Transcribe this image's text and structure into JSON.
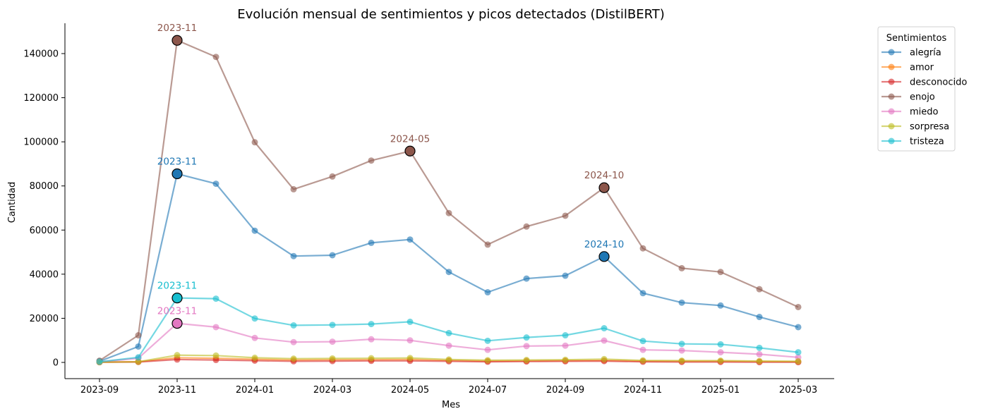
{
  "chart_data": {
    "type": "line",
    "title": "Evolución mensual de sentimientos y picos detectados (DistilBERT)",
    "xlabel": "Mes",
    "ylabel": "Cantidad",
    "ylim": [
      -7500,
      153000
    ],
    "yticks": [
      0,
      20000,
      40000,
      60000,
      80000,
      100000,
      120000,
      140000
    ],
    "x": [
      "2023-09",
      "2023-10",
      "2023-11",
      "2023-12",
      "2024-01",
      "2024-02",
      "2024-03",
      "2024-04",
      "2024-05",
      "2024-06",
      "2024-07",
      "2024-08",
      "2024-09",
      "2024-10",
      "2024-11",
      "2024-12",
      "2025-01",
      "2025-02",
      "2025-03"
    ],
    "xtick_labels": [
      "2023-09",
      "2023-11",
      "2024-01",
      "2024-03",
      "2024-05",
      "2024-07",
      "2024-09",
      "2024-11",
      "2025-01",
      "2025-03"
    ],
    "legend_title": "Sentimientos",
    "legend_position": "upper-right-outside",
    "grid": false,
    "series": [
      {
        "name": "alegría",
        "color": "#1f77b4",
        "values": [
          500,
          7200,
          85500,
          81000,
          59700,
          48200,
          48600,
          54200,
          55700,
          41000,
          31800,
          38000,
          39300,
          48000,
          31400,
          27100,
          25800,
          20600,
          16000
        ]
      },
      {
        "name": "amor",
        "color": "#ff7f0e",
        "values": [
          100,
          300,
          2100,
          1900,
          1400,
          1100,
          1200,
          1200,
          1300,
          900,
          600,
          700,
          800,
          900,
          600,
          500,
          500,
          400,
          300
        ]
      },
      {
        "name": "desconocido",
        "color": "#d62728",
        "values": [
          100,
          200,
          1300,
          1100,
          800,
          500,
          600,
          700,
          700,
          500,
          300,
          400,
          500,
          600,
          300,
          200,
          200,
          100,
          100
        ]
      },
      {
        "name": "enojo",
        "color": "#8c564b",
        "values": [
          800,
          12300,
          146000,
          138500,
          99800,
          78500,
          84300,
          91500,
          95800,
          67700,
          53400,
          61600,
          66500,
          79200,
          51700,
          42700,
          41000,
          33200,
          25100
        ]
      },
      {
        "name": "miedo",
        "color": "#e377c2",
        "values": [
          200,
          1900,
          17700,
          16000,
          11100,
          9200,
          9400,
          10500,
          10000,
          7600,
          5700,
          7400,
          7600,
          9900,
          5700,
          5400,
          4600,
          3700,
          2300
        ]
      },
      {
        "name": "sorpresa",
        "color": "#bcbd22",
        "values": [
          100,
          300,
          3300,
          3100,
          2100,
          1700,
          1800,
          1900,
          2000,
          1300,
          1000,
          1100,
          1200,
          1500,
          900,
          800,
          800,
          600,
          500
        ]
      },
      {
        "name": "tristeza",
        "color": "#17becf",
        "values": [
          300,
          2300,
          29200,
          28900,
          19900,
          16800,
          17000,
          17400,
          18400,
          13300,
          9800,
          11300,
          12300,
          15500,
          9700,
          8400,
          8200,
          6600,
          4600
        ]
      }
    ],
    "peaks": [
      {
        "series": "enojo",
        "label": "2023-11",
        "x": "2023-11",
        "y": 146000
      },
      {
        "series": "enojo",
        "label": "2024-05",
        "x": "2024-05",
        "y": 95800
      },
      {
        "series": "enojo",
        "label": "2024-10",
        "x": "2024-10",
        "y": 79200
      },
      {
        "series": "alegría",
        "label": "2023-11",
        "x": "2023-11",
        "y": 85500
      },
      {
        "series": "alegría",
        "label": "2024-10",
        "x": "2024-10",
        "y": 48000
      },
      {
        "series": "tristeza",
        "label": "2023-11",
        "x": "2023-11",
        "y": 29200
      },
      {
        "series": "miedo",
        "label": "2023-11",
        "x": "2023-11",
        "y": 17700
      }
    ]
  }
}
